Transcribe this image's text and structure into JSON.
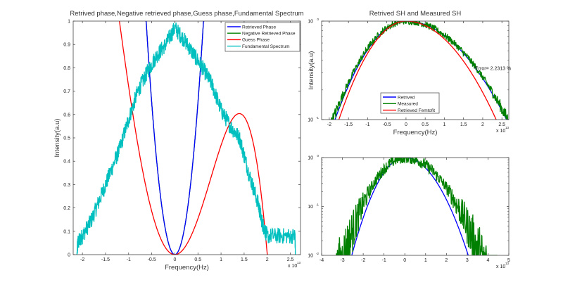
{
  "chart_data": [
    {
      "type": "line",
      "title": "Retrived phase,Negative retrieved phase,Guess phase,Fundamental Spectrum",
      "xlabel": "Frequency(Hz)",
      "ylabel": "Intensity(a.u)",
      "x_multiplier": "x 10",
      "x_multiplier_exp": "13",
      "xlim": [
        -2.2,
        2.72
      ],
      "ylim": [
        0,
        1
      ],
      "yscale": "linear",
      "xticks": [
        "-2",
        "-1.5",
        "-1",
        "-0.5",
        "0",
        "0.5",
        "1",
        "1.5",
        "2",
        "2.5"
      ],
      "xtick_values": [
        -2,
        -1.5,
        -1,
        -0.5,
        0,
        0.5,
        1,
        1.5,
        2,
        2.5
      ],
      "yticks": [
        "0",
        "0.1",
        "0.2",
        "0.3",
        "0.4",
        "0.5",
        "0.6",
        "0.7",
        "0.8",
        "0.9",
        "1"
      ],
      "ytick_values": [
        0,
        0.1,
        0.2,
        0.3,
        0.4,
        0.5,
        0.6,
        0.7,
        0.8,
        0.9,
        1
      ],
      "legend_position": "top-right",
      "series": [
        {
          "name": "Retrieved Phase",
          "color": "#0000ff",
          "model": "quadratic",
          "coef": 2.6,
          "x_range": [
            -0.64,
            0.64
          ]
        },
        {
          "name": "Negative Retrieved Phase",
          "color": "#008000",
          "model": "quadratic",
          "coef": 2.6,
          "x_range": [
            -0.64,
            0.64
          ],
          "hidden_under": "Retrieved Phase"
        },
        {
          "name": "Guess Phase",
          "color": "#ff0000",
          "model": "x^2(2-x)(c+dx)",
          "c": 0.354,
          "d": 0.114,
          "x_range": [
            -1.2,
            2.02
          ]
        },
        {
          "name": "Fundamental Spectrum",
          "color": "#00bfbf",
          "noise": 0.035,
          "x": [
            -2.12,
            -2.1,
            -2.0,
            -1.8,
            -1.6,
            -1.4,
            -1.2,
            -1.0,
            -0.8,
            -0.6,
            -0.4,
            -0.2,
            0,
            0.2,
            0.4,
            0.6,
            0.8,
            1.0,
            1.2,
            1.4,
            1.6,
            1.8,
            1.9,
            2.0,
            2.3,
            2.6,
            2.61
          ],
          "y": [
            0,
            0.05,
            0.08,
            0.15,
            0.25,
            0.35,
            0.45,
            0.58,
            0.7,
            0.78,
            0.85,
            0.9,
            0.97,
            0.92,
            0.86,
            0.8,
            0.73,
            0.62,
            0.55,
            0.5,
            0.35,
            0.22,
            0.13,
            0.08,
            0.08,
            0.08,
            0
          ]
        }
      ]
    },
    {
      "type": "line",
      "title": "Retrived SH and Measured SH",
      "xlabel": "Frequency(Hz)",
      "ylabel": "Intensity(a.u)",
      "x_multiplier": "x 10",
      "x_multiplier_exp": "13",
      "xlim": [
        -2.2,
        2.68
      ],
      "ylim": [
        0.1,
        1
      ],
      "yscale": "log",
      "xticks": [
        "-2",
        "-1.5",
        "-1",
        "-0.5",
        "0",
        "0.5",
        "1",
        "1.5",
        "2",
        "2.5"
      ],
      "xtick_values": [
        -2,
        -1.5,
        -1,
        -0.5,
        0,
        0.5,
        1,
        1.5,
        2,
        2.5
      ],
      "yticks": [
        "10",
        "10"
      ],
      "ytick_exps": [
        "-1",
        "0"
      ],
      "ytick_values": [
        0.1,
        1
      ],
      "annotation": "Error= 2.2313 %",
      "annotation_at": [
        1.8,
        0.32
      ],
      "legend_position": "bottom-center",
      "series": [
        {
          "name": "Retrived",
          "color": "#0000ff",
          "model": "log-gaussian",
          "w_left": 1.85,
          "w_right": 2.62,
          "x_range": [
            -1.85,
            2.68
          ]
        },
        {
          "name": "Measured",
          "color": "#008000",
          "model": "log-gaussian",
          "w_left": 1.9,
          "w_right": 2.65,
          "noise": 0.035,
          "x_range": [
            -1.95,
            2.68
          ]
        },
        {
          "name": "Retrieved Femtofit",
          "color": "#ff0000",
          "model": "log-gaussian",
          "w_left": 1.75,
          "w_right": 2.35,
          "x_range": [
            -1.75,
            2.35
          ]
        }
      ]
    },
    {
      "type": "line",
      "title": "",
      "x_multiplier": "x 10",
      "x_multiplier_exp": "13",
      "xlim": [
        -4,
        5
      ],
      "ylim": [
        0.01,
        1
      ],
      "yscale": "log",
      "xticks": [
        "-4",
        "-3",
        "-2",
        "-1",
        "0",
        "1",
        "2",
        "3",
        "4",
        "5"
      ],
      "xtick_values": [
        -4,
        -3,
        -2,
        -1,
        0,
        1,
        2,
        3,
        4,
        5
      ],
      "yticks": [
        "10",
        "10",
        "10"
      ],
      "ytick_exps": [
        "-2",
        "-1",
        "0"
      ],
      "ytick_values": [
        0.01,
        0.1,
        1
      ],
      "series": [
        {
          "name": "Retrived",
          "color": "#0000ff",
          "model": "log-gaussian",
          "log_depth": 2,
          "w_left": 2.55,
          "w_right": 3.05,
          "x_range": [
            -2.55,
            3.05
          ]
        },
        {
          "name": "Measured",
          "color": "#008000",
          "model": "log-gaussian",
          "log_depth": 2,
          "w_left": 2.9,
          "w_right": 3.6,
          "noise": 0.12,
          "x_range": [
            -3.3,
            4.45
          ]
        }
      ]
    }
  ]
}
